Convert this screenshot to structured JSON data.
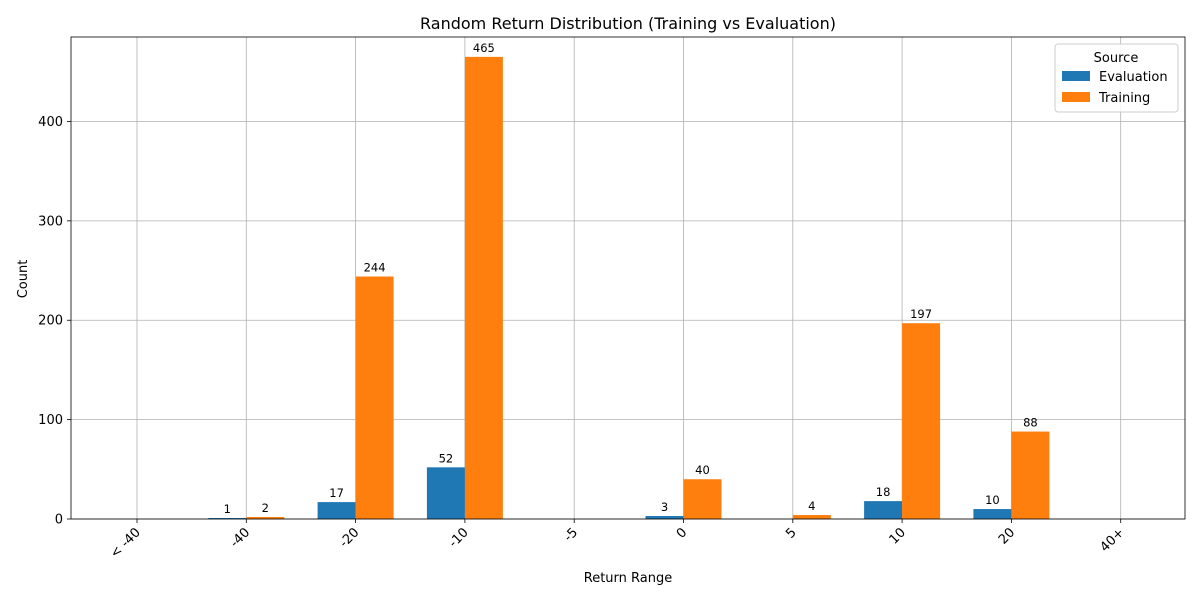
{
  "chart_data": {
    "type": "bar",
    "title": "Random Return Distribution (Training vs Evaluation)",
    "xlabel": "Return Range",
    "ylabel": "Count",
    "ylim": [
      0,
      485
    ],
    "yticks": [
      0,
      100,
      200,
      300,
      400
    ],
    "categories": [
      "< -40",
      "-40",
      "-20",
      "-10",
      "-5",
      "0",
      "5",
      "10",
      "20",
      "40+"
    ],
    "grid": true,
    "legend": {
      "title": "Source",
      "placement": "top-right"
    },
    "series": [
      {
        "name": "Evaluation",
        "color": "#1f77b4",
        "values": [
          0,
          1,
          17,
          52,
          0,
          3,
          0,
          18,
          10,
          0
        ]
      },
      {
        "name": "Training",
        "color": "#ff7f0e",
        "values": [
          0,
          2,
          244,
          465,
          0,
          40,
          4,
          197,
          88,
          0
        ]
      }
    ]
  }
}
